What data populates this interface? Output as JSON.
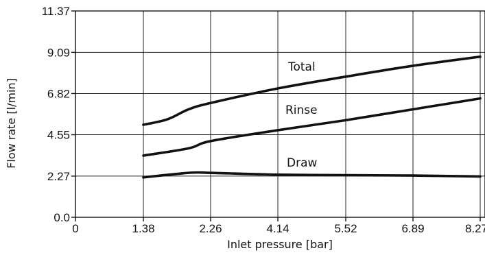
{
  "chart_data": {
    "type": "line",
    "xlabel": "Inlet pressure [bar]",
    "ylabel": "Flow rate [l/min]",
    "x_tick_labels": [
      "0",
      "1.38",
      "2.26",
      "4.14",
      "5.52",
      "6.89",
      "8.27"
    ],
    "y_tick_labels": [
      "0.0",
      "2.27",
      "4.55",
      "6.82",
      "9.09",
      "11.37"
    ],
    "ylim": [
      0,
      11.37
    ],
    "grid": true,
    "series": [
      {
        "name": "Total",
        "points": [
          {
            "x": "1.38",
            "y": 5.1
          },
          {
            "x": "1.38+",
            "y": 5.4
          },
          {
            "x": "2.26-",
            "y": 5.95
          },
          {
            "x": "2.26",
            "y": 6.3
          },
          {
            "x": "4.14",
            "y": 7.1
          },
          {
            "x": "5.52",
            "y": 7.75
          },
          {
            "x": "6.89",
            "y": 8.35
          },
          {
            "x": "8.27",
            "y": 8.85
          }
        ]
      },
      {
        "name": "Rinse",
        "points": [
          {
            "x": "1.38",
            "y": 3.4
          },
          {
            "x": "2.26-",
            "y": 3.8
          },
          {
            "x": "2.26",
            "y": 4.2
          },
          {
            "x": "4.14",
            "y": 4.8
          },
          {
            "x": "5.52",
            "y": 5.35
          },
          {
            "x": "6.89",
            "y": 5.95
          },
          {
            "x": "8.27",
            "y": 6.55
          }
        ]
      },
      {
        "name": "Draw",
        "points": [
          {
            "x": "1.38",
            "y": 2.2
          },
          {
            "x": "2.26-",
            "y": 2.45
          },
          {
            "x": "2.26",
            "y": 2.45
          },
          {
            "x": "4.14",
            "y": 2.35
          },
          {
            "x": "5.52",
            "y": 2.32
          },
          {
            "x": "6.89",
            "y": 2.3
          },
          {
            "x": "8.27",
            "y": 2.25
          }
        ]
      }
    ],
    "colors": {
      "line": "#111111",
      "grid": "#222222",
      "axis": "#111111"
    }
  }
}
